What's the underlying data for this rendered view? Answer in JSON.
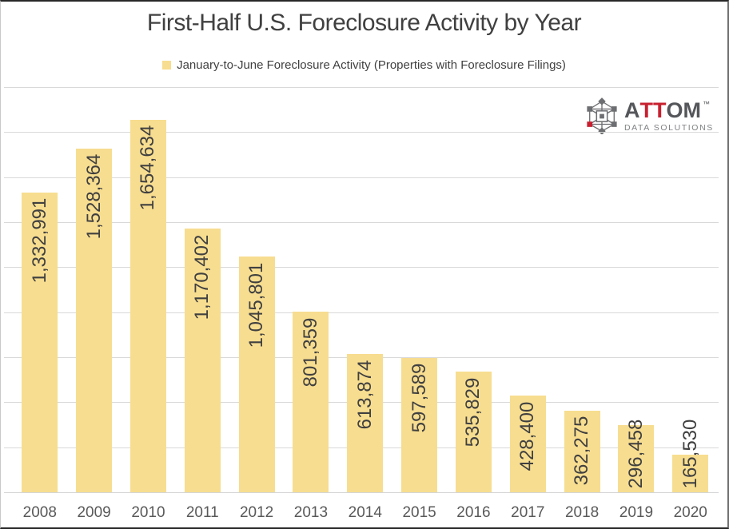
{
  "title": "First-Half U.S. Foreclosure Activity by Year",
  "legend": {
    "label": "January-to-June Foreclosure Activity (Properties with Foreclosure Filings)"
  },
  "logo": {
    "name": "ATTOM Data Solutions",
    "word_a": "A",
    "word_tt": "TT",
    "word_om": "OM",
    "trademark": "™",
    "tagline": "DATA SOLUTIONS",
    "icon": "atom-network-icon",
    "colors": {
      "text": "#54565A",
      "accent": "#C8202F",
      "tagline": "#808285",
      "icon": "#6D6E71"
    }
  },
  "chart_data": {
    "type": "bar",
    "title": "First-Half U.S. Foreclosure Activity by Year",
    "series_name": "January-to-June Foreclosure Activity (Properties with Foreclosure Filings)",
    "categories": [
      "2008",
      "2009",
      "2010",
      "2011",
      "2012",
      "2013",
      "2014",
      "2015",
      "2016",
      "2017",
      "2018",
      "2019",
      "2020"
    ],
    "values": [
      1332991,
      1528364,
      1654634,
      1170402,
      1045801,
      801359,
      613874,
      597589,
      535829,
      428400,
      362275,
      296458,
      165530
    ],
    "value_labels": [
      "1,332,991",
      "1,528,364",
      "1,654,634",
      "1,170,402",
      "1,045,801",
      "801,359",
      "613,874",
      "597,589",
      "535,829",
      "428,400",
      "362,275",
      "296,458",
      "165,530"
    ],
    "xlabel": "",
    "ylabel": "",
    "ylim": [
      0,
      1800000
    ],
    "gridline_interval": 200000,
    "grid": true,
    "y_axis_labels_visible": false,
    "legend_position": "top",
    "value_label_rotation": -90,
    "colors": {
      "bar": "#F7DD90",
      "value_label": "#404040",
      "axis_label": "#595959",
      "gridline": "#D9D9D9",
      "title": "#404040",
      "legend_text": "#404040"
    }
  }
}
